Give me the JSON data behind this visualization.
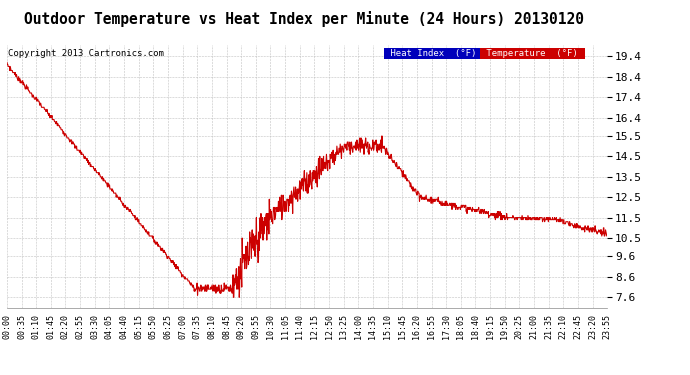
{
  "title": "Outdoor Temperature vs Heat Index per Minute (24 Hours) 20130120",
  "copyright": "Copyright 2013 Cartronics.com",
  "yticks": [
    7.6,
    8.6,
    9.6,
    10.5,
    11.5,
    12.5,
    13.5,
    14.5,
    15.5,
    16.4,
    17.4,
    18.4,
    19.4
  ],
  "ylim": [
    7.1,
    19.95
  ],
  "xtick_labels": [
    "00:00",
    "00:35",
    "01:10",
    "01:45",
    "02:20",
    "02:55",
    "03:30",
    "04:05",
    "04:40",
    "05:15",
    "05:50",
    "06:25",
    "07:00",
    "07:35",
    "08:10",
    "08:45",
    "09:20",
    "09:55",
    "10:30",
    "11:05",
    "11:40",
    "12:15",
    "12:50",
    "13:25",
    "14:00",
    "14:35",
    "15:10",
    "15:45",
    "16:20",
    "16:55",
    "17:30",
    "18:05",
    "18:40",
    "19:15",
    "19:50",
    "20:25",
    "21:00",
    "21:35",
    "22:10",
    "22:45",
    "23:20",
    "23:55"
  ],
  "line_color": "#cc0000",
  "background_color": "#ffffff",
  "grid_color": "#bbbbbb",
  "title_fontsize": 11,
  "legend_heat_index_bg": "#0000bb",
  "legend_temp_bg": "#cc0000",
  "legend_text_color": "#ffffff"
}
